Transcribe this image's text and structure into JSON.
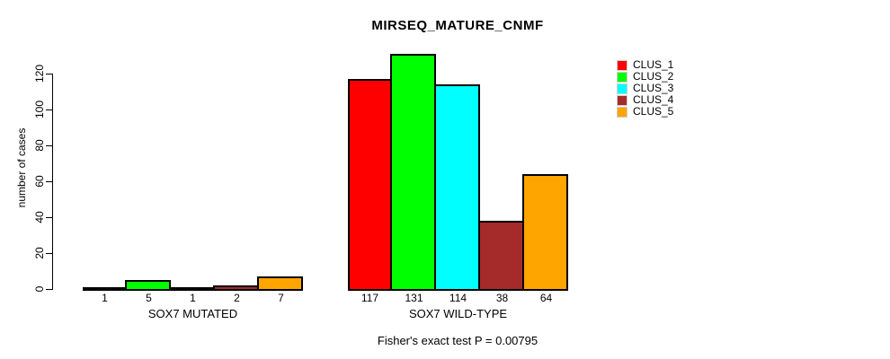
{
  "chart_data": {
    "type": "bar",
    "title": "MIRSEQ_MATURE_CNMF",
    "ylabel": "number of cases",
    "xlabel": "",
    "ylim": [
      0,
      131
    ],
    "yticks": [
      0,
      20,
      40,
      60,
      80,
      100,
      120
    ],
    "grid": false,
    "legend_position": "right",
    "bar_value_labels_visible": true,
    "categories": [
      "SOX7 MUTATED",
      "SOX7 WILD-TYPE"
    ],
    "series": [
      {
        "name": "CLUS_1",
        "color": "#FF0000",
        "values": [
          1,
          117
        ]
      },
      {
        "name": "CLUS_2",
        "color": "#00FF00",
        "values": [
          5,
          131
        ]
      },
      {
        "name": "CLUS_3",
        "color": "#00FFFF",
        "values": [
          1,
          114
        ]
      },
      {
        "name": "CLUS_4",
        "color": "#A52A2A",
        "values": [
          2,
          38
        ]
      },
      {
        "name": "CLUS_5",
        "color": "#FFA500",
        "values": [
          7,
          64
        ]
      }
    ],
    "annotation": "Fisher's exact test P = 0.00795"
  },
  "colors": {
    "background": "#FFFFFF",
    "axis": "#000000",
    "bar_border": "#000000",
    "text": "#000000"
  }
}
